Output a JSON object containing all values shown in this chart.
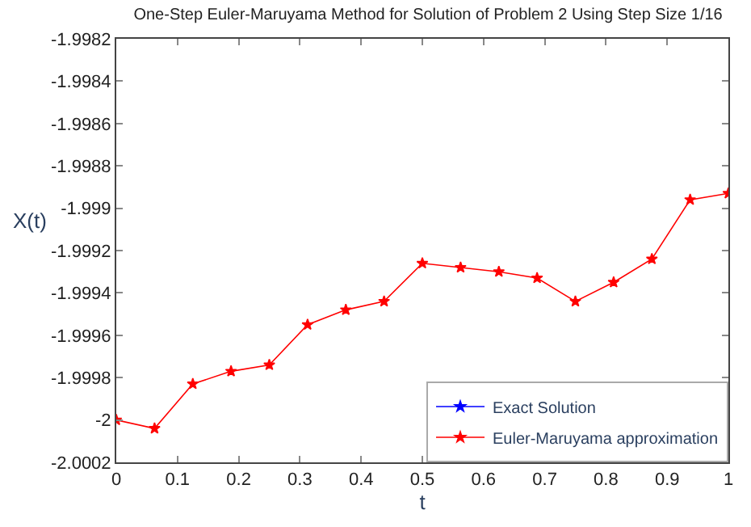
{
  "chart_data": {
    "type": "line",
    "title": "One-Step Euler-Maruyama Method for Solution of Problem 2 Using Step Size 1/16",
    "xlabel": "t",
    "ylabel": "X(t)",
    "x": [
      0,
      0.0625,
      0.125,
      0.1875,
      0.25,
      0.3125,
      0.375,
      0.4375,
      0.5,
      0.5625,
      0.625,
      0.6875,
      0.75,
      0.8125,
      0.875,
      0.9375,
      1
    ],
    "series": [
      {
        "name": "Exact Solution",
        "color": "#0000ff",
        "values": [
          null,
          null,
          null,
          null,
          null,
          null,
          null,
          null,
          null,
          null,
          null,
          null,
          null,
          null,
          null,
          null,
          null
        ]
      },
      {
        "name": "Euler-Maruyama approximation",
        "color": "#ff0000",
        "values": [
          -2.0,
          -2.00004,
          -1.99983,
          -1.99977,
          -1.99974,
          -1.99955,
          -1.99948,
          -1.99944,
          -1.99926,
          -1.99928,
          -1.9993,
          -1.99933,
          -1.99944,
          -1.99935,
          -1.99924,
          -1.99896,
          -1.99893
        ]
      }
    ],
    "xlim": [
      0,
      1
    ],
    "xticks": [
      0,
      0.1,
      0.2,
      0.3,
      0.4,
      0.5,
      0.6,
      0.7,
      0.8,
      0.9,
      1
    ],
    "ylim": [
      -2.0002,
      -1.9982
    ],
    "yticks": [
      -2.0002,
      -2,
      -1.9998,
      -1.9996,
      -1.9994,
      -1.9992,
      -1.999,
      -1.9988,
      -1.9986,
      -1.9984,
      -1.9982
    ],
    "marker": "star",
    "line_style": "solid",
    "legend": "bottom right"
  }
}
